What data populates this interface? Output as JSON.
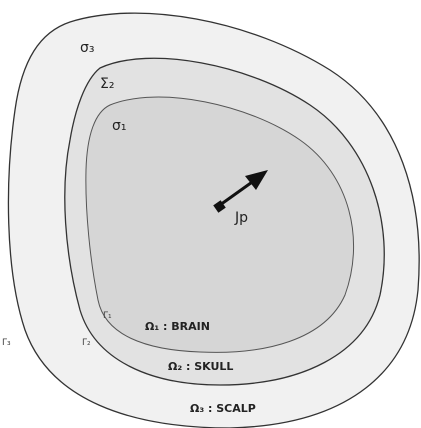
{
  "labels": {
    "sigma3": "σ₃",
    "sigma2": "Σ₂",
    "sigma1": "σ₁",
    "jp": "Jp",
    "gamma1": "Γ₁",
    "gamma2": "Γ₂",
    "gamma3": "Γ₃",
    "omega1": "Ω₁ : BRAIN",
    "omega2": "Ω₂ : SKULL",
    "omega3": "Ω₃ : SCALP"
  }
}
